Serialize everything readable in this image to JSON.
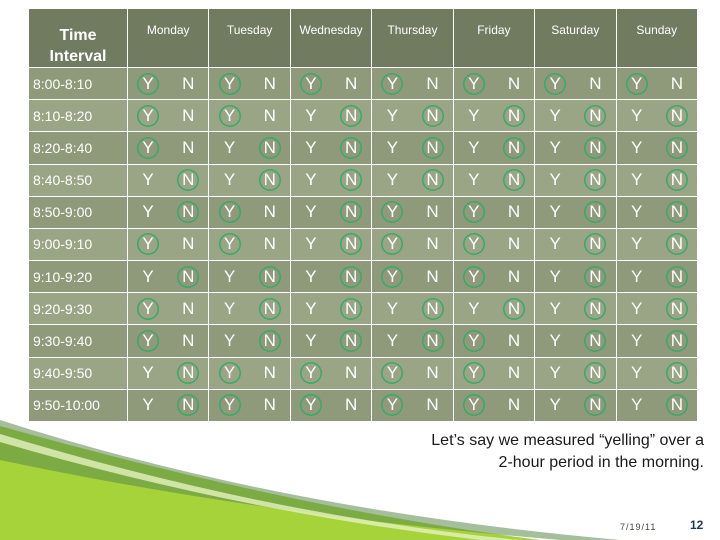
{
  "table": {
    "header_first": "Time Interval",
    "days": [
      "Monday",
      "Tuesday",
      "Wednesday",
      "Thursday",
      "Friday",
      "Saturday",
      "Sunday"
    ],
    "y_label": "Y",
    "n_label": "N",
    "rows": [
      {
        "time": "8:00-8:10",
        "marks": [
          "Y",
          "Y",
          "Y",
          "Y",
          "Y",
          "Y",
          "Y"
        ]
      },
      {
        "time": "8:10-8:20",
        "marks": [
          "Y",
          "Y",
          "N",
          "N",
          "N",
          "N",
          "N"
        ]
      },
      {
        "time": "8:20-8:40",
        "marks": [
          "Y",
          "N",
          "N",
          "N",
          "N",
          "N",
          "N"
        ]
      },
      {
        "time": "8:40-8:50",
        "marks": [
          "N",
          "N",
          "N",
          "N",
          "N",
          "N",
          "N"
        ]
      },
      {
        "time": "8:50-9:00",
        "marks": [
          "N",
          "Y",
          "N",
          "Y",
          "Y",
          "N",
          "N"
        ]
      },
      {
        "time": "9:00-9:10",
        "marks": [
          "Y",
          "Y",
          "N",
          "Y",
          "Y",
          "N",
          "N"
        ]
      },
      {
        "time": "9:10-9:20",
        "marks": [
          "N",
          "N",
          "N",
          "Y",
          "Y",
          "N",
          "N"
        ]
      },
      {
        "time": "9:20-9:30",
        "marks": [
          "Y",
          "N",
          "N",
          "N",
          "N",
          "N",
          "N"
        ]
      },
      {
        "time": "9:30-9:40",
        "marks": [
          "Y",
          "N",
          "N",
          "N",
          "Y",
          "N",
          "N"
        ]
      },
      {
        "time": "9:40-9:50",
        "marks": [
          "N",
          "Y",
          "Y",
          "Y",
          "Y",
          "N",
          "N"
        ]
      },
      {
        "time": "9:50-10:00",
        "marks": [
          "N",
          "Y",
          "Y",
          "Y",
          "Y",
          "N",
          "N"
        ]
      }
    ]
  },
  "caption": {
    "line1": "Let’s say  we measured “yelling” over a",
    "line2": "2-hour period in the morning."
  },
  "footer": {
    "date": "7/19/11",
    "page": "12"
  },
  "colors": {
    "header_bg": "#717b60",
    "row_dark": "#8e9a79",
    "row_light": "#9aa585",
    "circle": "#3aa86b",
    "accent_green": "#a6d23a"
  }
}
